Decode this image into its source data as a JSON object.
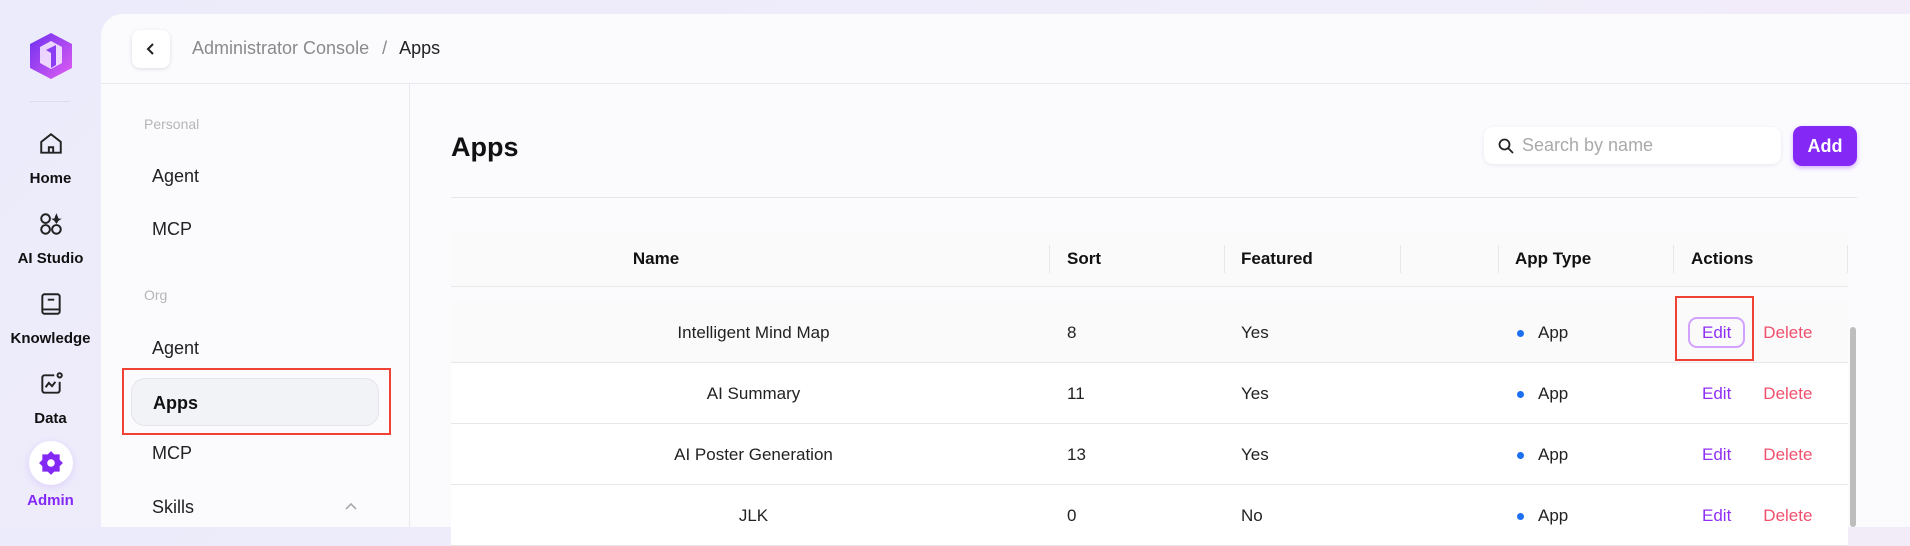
{
  "rail": {
    "items": [
      {
        "label": "Home",
        "icon": "home-icon"
      },
      {
        "label": "AI Studio",
        "icon": "ai-studio-icon"
      },
      {
        "label": "Knowledge",
        "icon": "book-icon"
      },
      {
        "label": "Data",
        "icon": "chart-icon"
      },
      {
        "label": "Admin",
        "icon": "gear-icon",
        "active": true
      }
    ]
  },
  "breadcrumb": {
    "parent": "Administrator Console",
    "sep": "/",
    "current": "Apps"
  },
  "subnav": {
    "personal_label": "Personal",
    "personal": [
      {
        "label": "Agent"
      },
      {
        "label": "MCP"
      }
    ],
    "org_label": "Org",
    "org": [
      {
        "label": "Agent"
      },
      {
        "label": "Apps",
        "active": true
      },
      {
        "label": "MCP"
      },
      {
        "label": "Skills"
      }
    ]
  },
  "main": {
    "title": "Apps",
    "search_placeholder": "Search by name",
    "add_label": "Add",
    "columns": [
      "Name",
      "Sort",
      "Featured",
      "",
      "App Type",
      "Actions"
    ],
    "rows": [
      {
        "name": "Intelligent Mind Map",
        "sort": "8",
        "featured": "Yes",
        "type": "App",
        "edit": "Edit",
        "delete": "Delete"
      },
      {
        "name": "AI Summary",
        "sort": "11",
        "featured": "Yes",
        "type": "App",
        "edit": "Edit",
        "delete": "Delete"
      },
      {
        "name": "AI Poster Generation",
        "sort": "13",
        "featured": "Yes",
        "type": "App",
        "edit": "Edit",
        "delete": "Delete"
      },
      {
        "name": "JLK",
        "sort": "0",
        "featured": "No",
        "type": "App",
        "edit": "Edit",
        "delete": "Delete"
      }
    ]
  },
  "colors": {
    "accent": "#8429f5",
    "delete": "#f0506e",
    "type_dot": "#1d6ff2",
    "annotation": "#ef4235"
  }
}
